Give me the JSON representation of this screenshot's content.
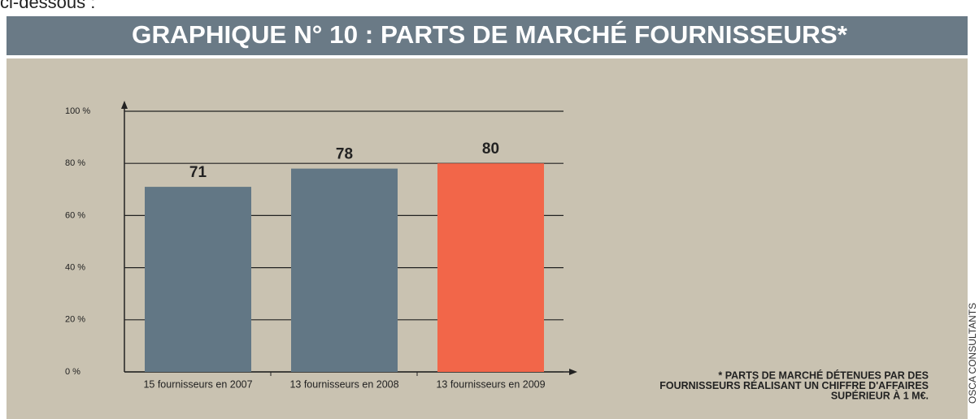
{
  "page_header": "ci-dessous :",
  "chart_data": {
    "type": "bar",
    "title": "GRAPHIQUE N° 10 : PARTS DE MARCHÉ FOURNISSEURS*",
    "categories": [
      "15 fournisseurs en 2007",
      "13 fournisseurs en 2008",
      "13 fournisseurs en 2009"
    ],
    "values": [
      71,
      78,
      80
    ],
    "colors": [
      "#627785",
      "#627785",
      "#f26649"
    ],
    "ylim": [
      0,
      100
    ],
    "yticks": [
      {
        "value": 0,
        "label": "0 %"
      },
      {
        "value": 20,
        "label": "20 %"
      },
      {
        "value": 40,
        "label": "40 %"
      },
      {
        "value": 60,
        "label": "60 %"
      },
      {
        "value": 80,
        "label": "80 %"
      },
      {
        "value": 100,
        "label": "100 %"
      }
    ],
    "grid": true,
    "footnote": [
      "* PARTS DE MARCHÉ DÉTENUES PAR DES",
      "FOURNISSEURS RÉALISANT UN CHIFFRE D'AFFAIRES",
      "SUPÉRIEUR À 1 M€."
    ],
    "source": "OSCA CONSULTANTS"
  }
}
